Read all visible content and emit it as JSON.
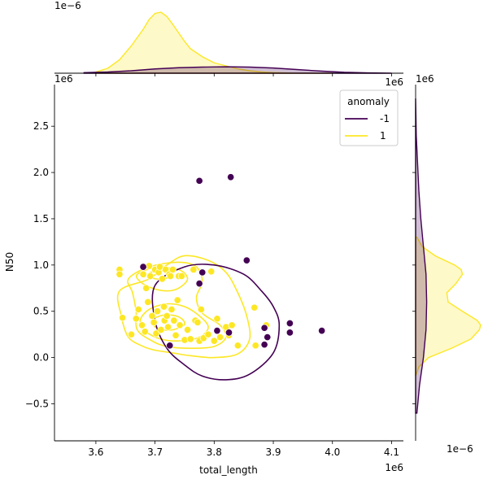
{
  "chart_data": {
    "type": "scatter",
    "subtype": "jointplot-with-kde",
    "xlabel": "total_length",
    "ylabel": "N50",
    "x_offset_label": "1e6",
    "y_offset_label": "1e6",
    "marg_x_offset_label": "1e−6",
    "marg_y_offset_label": "1e−6",
    "xlim": [
      3.53,
      4.12
    ],
    "ylim": [
      -0.9,
      2.95
    ],
    "xticks": [
      3.6,
      3.7,
      3.8,
      3.9,
      4.0,
      4.1
    ],
    "xtick_labels": [
      "3.6",
      "3.7",
      "3.8",
      "3.9",
      "4.0",
      "4.1"
    ],
    "yticks": [
      -0.5,
      0.0,
      0.5,
      1.0,
      1.5,
      2.0,
      2.5
    ],
    "ytick_labels": [
      "−0.5",
      "0.0",
      "0.5",
      "1.0",
      "1.5",
      "2.0",
      "2.5"
    ],
    "grid": false,
    "legend": {
      "title": "anomaly",
      "placement": "top-right",
      "entries": [
        {
          "label": "-1",
          "color": "#440154"
        },
        {
          "label": "1",
          "color": "#fde725"
        }
      ]
    },
    "series": [
      {
        "name": "-1",
        "color": "#440154",
        "points": [
          [
            3.775,
            1.91
          ],
          [
            3.828,
            1.95
          ],
          [
            3.855,
            1.05
          ],
          [
            3.68,
            0.98
          ],
          [
            3.78,
            0.92
          ],
          [
            3.775,
            0.8
          ],
          [
            3.725,
            0.13
          ],
          [
            3.805,
            0.29
          ],
          [
            3.825,
            0.27
          ],
          [
            3.885,
            0.32
          ],
          [
            3.89,
            0.22
          ],
          [
            3.885,
            0.14
          ],
          [
            3.928,
            0.37
          ],
          [
            3.928,
            0.27
          ],
          [
            3.982,
            0.29
          ]
        ]
      },
      {
        "name": "1",
        "color": "#fde725",
        "points": [
          [
            3.64,
            0.95
          ],
          [
            3.64,
            0.9
          ],
          [
            3.645,
            0.43
          ],
          [
            3.66,
            0.25
          ],
          [
            3.668,
            0.42
          ],
          [
            3.672,
            0.52
          ],
          [
            3.678,
            0.35
          ],
          [
            3.68,
            0.9
          ],
          [
            3.683,
            0.28
          ],
          [
            3.685,
            0.75
          ],
          [
            3.688,
            0.6
          ],
          [
            3.69,
            0.99
          ],
          [
            3.692,
            0.88
          ],
          [
            3.695,
            0.45
          ],
          [
            3.698,
            0.38
          ],
          [
            3.7,
            0.95
          ],
          [
            3.702,
            0.26
          ],
          [
            3.704,
            0.5
          ],
          [
            3.706,
            0.92
          ],
          [
            3.708,
            0.98
          ],
          [
            3.71,
            0.3
          ],
          [
            3.712,
            0.85
          ],
          [
            3.715,
            0.55
          ],
          [
            3.716,
            0.4
          ],
          [
            3.718,
            0.95
          ],
          [
            3.72,
            0.45
          ],
          [
            3.722,
            0.33
          ],
          [
            3.724,
            0.9
          ],
          [
            3.726,
            0.88
          ],
          [
            3.728,
            0.52
          ],
          [
            3.73,
            0.95
          ],
          [
            3.732,
            0.4
          ],
          [
            3.735,
            0.24
          ],
          [
            3.738,
            0.62
          ],
          [
            3.74,
            0.88
          ],
          [
            3.742,
            0.35
          ],
          [
            3.745,
            0.88
          ],
          [
            3.75,
            0.19
          ],
          [
            3.755,
            0.3
          ],
          [
            3.76,
            0.2
          ],
          [
            3.765,
            0.95
          ],
          [
            3.768,
            0.4
          ],
          [
            3.772,
            0.38
          ],
          [
            3.775,
            0.18
          ],
          [
            3.778,
            0.52
          ],
          [
            3.782,
            0.21
          ],
          [
            3.79,
            0.25
          ],
          [
            3.795,
            0.93
          ],
          [
            3.8,
            0.18
          ],
          [
            3.805,
            0.42
          ],
          [
            3.81,
            0.22
          ],
          [
            3.82,
            0.33
          ],
          [
            3.825,
            0.24
          ],
          [
            3.83,
            0.35
          ],
          [
            3.84,
            0.13
          ],
          [
            3.868,
            0.54
          ],
          [
            3.87,
            0.13
          ],
          [
            3.888,
            0.35
          ]
        ]
      }
    ],
    "kde_contours": [
      {
        "series": "1",
        "color": "#fde725",
        "levels": [
          [
            [
              3.64,
              0.72
            ],
            [
              3.69,
              0.85
            ],
            [
              3.72,
              1.0
            ],
            [
              3.75,
              1.1
            ],
            [
              3.79,
              1.05
            ],
            [
              3.82,
              0.92
            ],
            [
              3.84,
              0.7
            ],
            [
              3.855,
              0.45
            ],
            [
              3.86,
              0.2
            ],
            [
              3.84,
              0.04
            ],
            [
              3.8,
              0.0
            ],
            [
              3.76,
              0.02
            ],
            [
              3.73,
              0.05
            ],
            [
              3.7,
              0.08
            ],
            [
              3.68,
              0.12
            ],
            [
              3.655,
              0.22
            ],
            [
              3.643,
              0.45
            ]
          ],
          [
            [
              3.655,
              0.85
            ],
            [
              3.69,
              0.98
            ],
            [
              3.74,
              1.03
            ],
            [
              3.77,
              0.98
            ],
            [
              3.78,
              0.82
            ],
            [
              3.77,
              0.65
            ],
            [
              3.78,
              0.48
            ],
            [
              3.81,
              0.35
            ],
            [
              3.82,
              0.22
            ],
            [
              3.8,
              0.12
            ],
            [
              3.76,
              0.1
            ],
            [
              3.72,
              0.12
            ],
            [
              3.695,
              0.18
            ],
            [
              3.67,
              0.3
            ],
            [
              3.668,
              0.5
            ],
            [
              3.662,
              0.7
            ]
          ],
          [
            [
              3.67,
              0.9
            ],
            [
              3.7,
              0.97
            ],
            [
              3.74,
              0.95
            ],
            [
              3.755,
              0.85
            ],
            [
              3.74,
              0.75
            ],
            [
              3.72,
              0.72
            ],
            [
              3.695,
              0.75
            ],
            [
              3.675,
              0.82
            ]
          ],
          [
            [
              3.675,
              0.4
            ],
            [
              3.69,
              0.52
            ],
            [
              3.72,
              0.58
            ],
            [
              3.75,
              0.55
            ],
            [
              3.775,
              0.45
            ],
            [
              3.79,
              0.33
            ],
            [
              3.775,
              0.22
            ],
            [
              3.74,
              0.18
            ],
            [
              3.71,
              0.2
            ],
            [
              3.685,
              0.28
            ]
          ],
          [
            [
              3.69,
              0.91
            ],
            [
              3.71,
              0.94
            ],
            [
              3.73,
              0.91
            ],
            [
              3.715,
              0.85
            ],
            [
              3.695,
              0.86
            ]
          ],
          [
            [
              3.695,
              0.4
            ],
            [
              3.715,
              0.46
            ],
            [
              3.74,
              0.44
            ],
            [
              3.75,
              0.36
            ],
            [
              3.73,
              0.3
            ],
            [
              3.705,
              0.31
            ]
          ]
        ]
      },
      {
        "series": "-1",
        "color": "#440154",
        "levels": [
          [
            [
              3.7,
              0.78
            ],
            [
              3.75,
              0.98
            ],
            [
              3.8,
              1.0
            ],
            [
              3.85,
              0.9
            ],
            [
              3.88,
              0.72
            ],
            [
              3.9,
              0.55
            ],
            [
              3.91,
              0.35
            ],
            [
              3.9,
              0.05
            ],
            [
              3.86,
              -0.18
            ],
            [
              3.82,
              -0.24
            ],
            [
              3.78,
              -0.2
            ],
            [
              3.75,
              -0.08
            ],
            [
              3.72,
              0.1
            ],
            [
              3.7,
              0.4
            ]
          ]
        ]
      }
    ],
    "marginal_x": {
      "series": [
        {
          "name": "1",
          "color": "#fde725",
          "x": [
            3.6,
            3.62,
            3.64,
            3.66,
            3.68,
            3.69,
            3.7,
            3.71,
            3.72,
            3.73,
            3.74,
            3.75,
            3.76,
            3.78,
            3.8,
            3.82,
            3.84,
            3.86,
            3.88,
            3.9,
            3.94,
            4.0
          ],
          "density": [
            0.02,
            0.08,
            0.22,
            0.45,
            0.72,
            0.88,
            0.98,
            1.0,
            0.93,
            0.8,
            0.66,
            0.52,
            0.4,
            0.27,
            0.17,
            0.12,
            0.07,
            0.04,
            0.02,
            0.01,
            0.0,
            0.0
          ]
        },
        {
          "name": "-1",
          "color": "#440154",
          "x": [
            3.58,
            3.62,
            3.66,
            3.7,
            3.74,
            3.78,
            3.82,
            3.86,
            3.9,
            3.94,
            3.98,
            4.02,
            4.06,
            4.1
          ],
          "density": [
            0.01,
            0.02,
            0.04,
            0.07,
            0.09,
            0.1,
            0.105,
            0.1,
            0.085,
            0.06,
            0.035,
            0.015,
            0.005,
            0.0
          ]
        }
      ]
    },
    "marginal_y": {
      "series": [
        {
          "name": "1",
          "color": "#fde725",
          "y": [
            -0.2,
            -0.1,
            0.0,
            0.1,
            0.2,
            0.3,
            0.35,
            0.4,
            0.5,
            0.6,
            0.7,
            0.8,
            0.9,
            0.95,
            1.0,
            1.1,
            1.2,
            1.3
          ],
          "density": [
            0.0,
            0.05,
            0.2,
            0.55,
            0.85,
            0.98,
            1.0,
            0.95,
            0.72,
            0.5,
            0.48,
            0.62,
            0.72,
            0.7,
            0.6,
            0.3,
            0.1,
            0.02
          ]
        },
        {
          "name": "-1",
          "color": "#440154",
          "y": [
            -1.0,
            -0.6,
            -0.3,
            0.0,
            0.3,
            0.6,
            0.9,
            1.2,
            1.5,
            1.8,
            2.1,
            2.4,
            2.8
          ],
          "density": [
            0.0,
            0.02,
            0.06,
            0.12,
            0.16,
            0.17,
            0.16,
            0.12,
            0.08,
            0.05,
            0.03,
            0.01,
            0.0
          ]
        }
      ]
    }
  }
}
